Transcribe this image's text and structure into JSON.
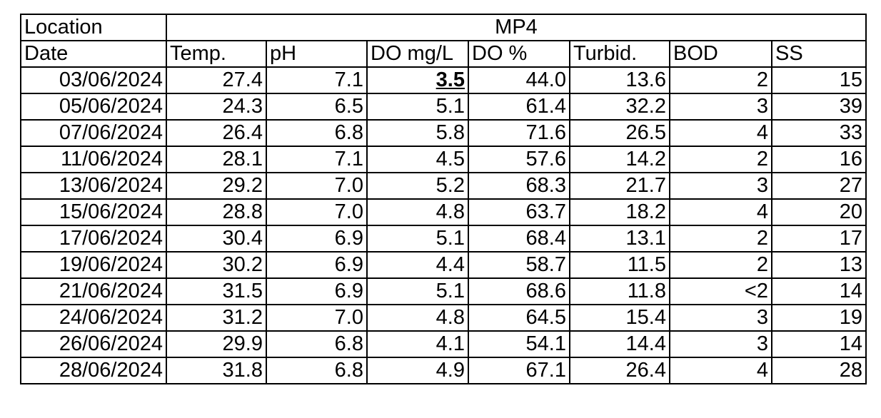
{
  "header": {
    "location": "Location",
    "site": "MP4"
  },
  "columns": [
    "Date",
    "Temp.",
    "pH",
    "DO mg/L",
    "DO %",
    "Turbid.",
    "BOD",
    "SS"
  ],
  "rows": [
    [
      "03/06/2024",
      "27.4",
      "7.1",
      "3.5",
      "44.0",
      "13.6",
      "2",
      "15"
    ],
    [
      "05/06/2024",
      "24.3",
      "6.5",
      "5.1",
      "61.4",
      "32.2",
      "3",
      "39"
    ],
    [
      "07/06/2024",
      "26.4",
      "6.8",
      "5.8",
      "71.6",
      "26.5",
      "4",
      "33"
    ],
    [
      "11/06/2024",
      "28.1",
      "7.1",
      "4.5",
      "57.6",
      "14.2",
      "2",
      "16"
    ],
    [
      "13/06/2024",
      "29.2",
      "7.0",
      "5.2",
      "68.3",
      "21.7",
      "3",
      "27"
    ],
    [
      "15/06/2024",
      "28.8",
      "7.0",
      "4.8",
      "63.7",
      "18.2",
      "4",
      "20"
    ],
    [
      "17/06/2024",
      "30.4",
      "6.9",
      "5.1",
      "68.4",
      "13.1",
      "2",
      "17"
    ],
    [
      "19/06/2024",
      "30.2",
      "6.9",
      "4.4",
      "58.7",
      "11.5",
      "2",
      "13"
    ],
    [
      "21/06/2024",
      "31.5",
      "6.9",
      "5.1",
      "68.6",
      "11.8",
      "<2",
      "14"
    ],
    [
      "24/06/2024",
      "31.2",
      "7.0",
      "4.8",
      "64.5",
      "15.4",
      "3",
      "19"
    ],
    [
      "26/06/2024",
      "29.9",
      "6.8",
      "4.1",
      "54.1",
      "14.4",
      "3",
      "14"
    ],
    [
      "28/06/2024",
      "31.8",
      "6.8",
      "4.9",
      "67.1",
      "26.4",
      "4",
      "28"
    ]
  ]
}
